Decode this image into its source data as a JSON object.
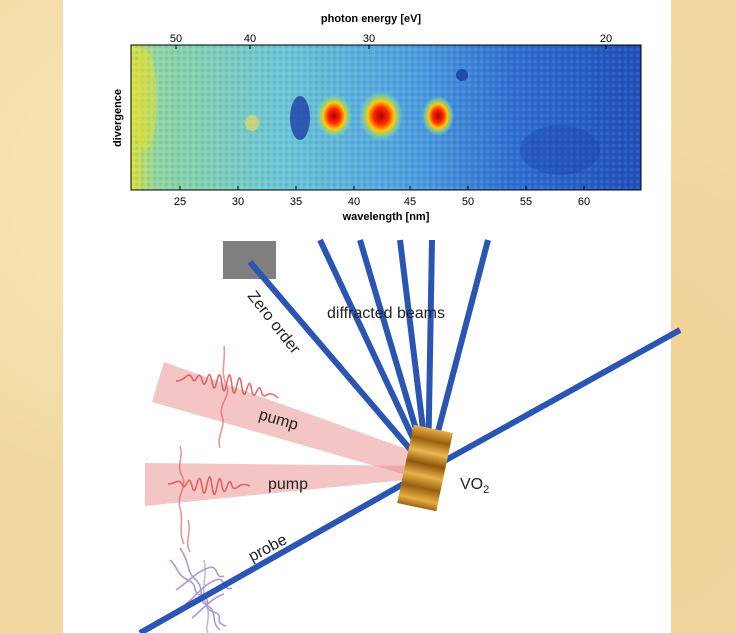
{
  "spectrum": {
    "top_axis_label": "photon energy [eV]",
    "top_ticks": [
      "50",
      "40",
      "30",
      "20"
    ],
    "bottom_axis_label": "wavelength [nm]",
    "bottom_ticks": [
      "25",
      "30",
      "35",
      "40",
      "45",
      "50",
      "55",
      "60"
    ],
    "y_axis_label": "divergence"
  },
  "diagram": {
    "zero_order_label": "Zero order",
    "diffracted_label": "diffracted beams",
    "pump_label_1": "pump",
    "pump_label_2": "pump",
    "probe_label": "probe",
    "sample_label": "VO",
    "sample_subscript": "2"
  },
  "colors": {
    "beam_blue": "#2a55b3",
    "pump_red": "#e05050",
    "probe_purple": "#a58fd0",
    "sample_gold": "#c98a1a",
    "stop_gray": "#7f7f7f"
  }
}
